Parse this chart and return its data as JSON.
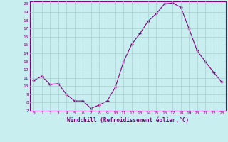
{
  "hours": [
    0,
    1,
    2,
    3,
    4,
    5,
    6,
    7,
    8,
    9,
    10,
    11,
    12,
    13,
    14,
    15,
    16,
    17,
    18,
    19,
    20,
    21,
    22,
    23
  ],
  "values": [
    10.7,
    11.2,
    10.2,
    10.3,
    9.0,
    8.2,
    8.2,
    7.3,
    7.7,
    8.2,
    9.9,
    13.0,
    15.1,
    16.4,
    17.9,
    18.8,
    20.0,
    20.1,
    19.6,
    17.0,
    14.3,
    13.0,
    11.7,
    10.5
  ],
  "xlabel": "Windchill (Refroidissement éolien,°C)",
  "ylim": [
    7,
    20
  ],
  "xlim": [
    -0.5,
    23.5
  ],
  "yticks": [
    7,
    8,
    9,
    10,
    11,
    12,
    13,
    14,
    15,
    16,
    17,
    18,
    19,
    20
  ],
  "xticks": [
    0,
    1,
    2,
    3,
    4,
    5,
    6,
    7,
    8,
    9,
    10,
    11,
    12,
    13,
    14,
    15,
    16,
    17,
    18,
    19,
    20,
    21,
    22,
    23
  ],
  "line_color": "#800080",
  "marker_color": "#800080",
  "bg_color": "#c8eef0",
  "grid_color": "#aacccc",
  "text_color": "#800080",
  "spine_color": "#800080"
}
